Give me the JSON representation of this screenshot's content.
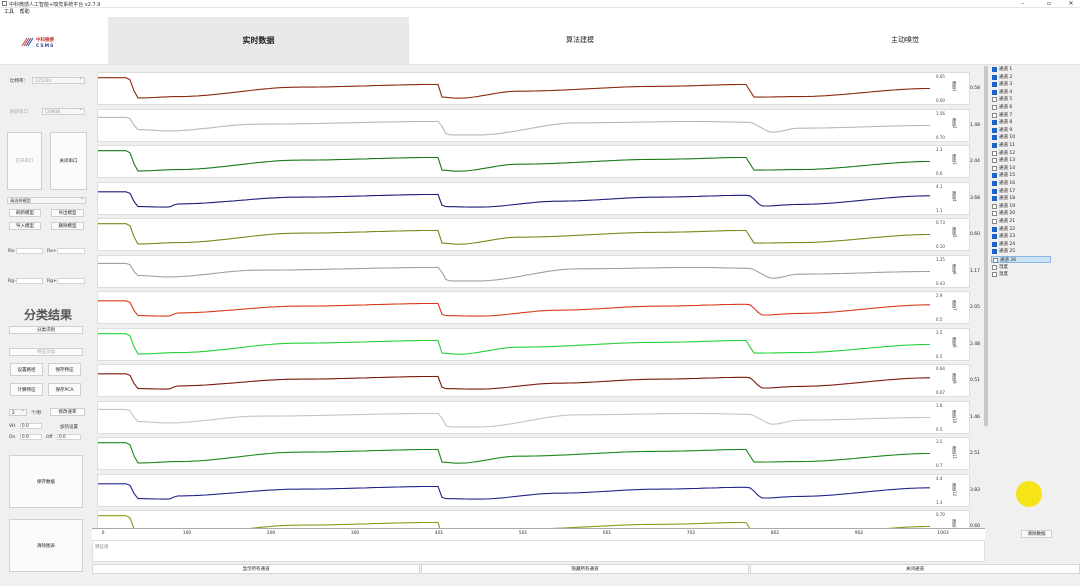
{
  "window": {
    "title": "中科微感人工智能+嗅觉系统平台 v2.7.9",
    "minimize": "–",
    "maximize": "▫",
    "close": "✕"
  },
  "menu": [
    "工具",
    "帮助"
  ],
  "logo": {
    "line1": "中科微感",
    "line2": "CSMS"
  },
  "tabs": [
    "实时数据",
    "算法建模",
    "主动嗅觉"
  ],
  "left": {
    "baud_label": "比特率：",
    "baud_value": "115200",
    "port_label": "刷新串口",
    "port_value": "COM38",
    "open_port": "打开串口",
    "close_port": "关闭串口",
    "model_select": "请选择模型",
    "model_buttons": [
      "刷新模型",
      "导出模型",
      "导入模型",
      "删除模型"
    ],
    "ra_minus": "Ra-",
    "ra_plus": "Ra+",
    "rg_minus": "Rg-",
    "rg_plus": "Rg+",
    "result_title": "分类结果",
    "classify_button": "分类识别",
    "feature_add": "特征添加",
    "feature_buttons": [
      "设置路径",
      "保存特征",
      "计算特征",
      "保存PCA"
    ],
    "per_count_value": "2",
    "per_count_label": "个/秒",
    "modify_rate": "修改速率",
    "vh_label": "VH",
    "vh_value": "0.0",
    "pulse_setting": "加热设置",
    "on_label": "On",
    "on_value": "0.0",
    "off_label": "Off",
    "off_value": "0.0",
    "save_data": "保存数据",
    "clear_chart": "清除图表"
  },
  "channels": [
    {
      "name": "通道1",
      "max": "0.65",
      "min": "0.00",
      "current": "0.58",
      "color": "#8b2a0e",
      "shape": 0
    },
    {
      "name": "通道2",
      "max": "1.56",
      "min": "0.70",
      "current": "1.48",
      "color": "#b8b8b8",
      "shape": 1
    },
    {
      "name": "通道3",
      "max": "3.3",
      "min": "0.6",
      "current": "2.44",
      "color": "#1a7a1a",
      "shape": 0
    },
    {
      "name": "通道4",
      "max": "4.1",
      "min": "1.1",
      "current": "3.68",
      "color": "#1c1c7a",
      "shape": 2
    },
    {
      "name": "通道5",
      "max": "0.73",
      "min": "0.10",
      "current": "0.60",
      "color": "#7a8a1a",
      "shape": 0
    },
    {
      "name": "通道6",
      "max": "1.25",
      "min": "0.43",
      "current": "1.17",
      "color": "#a0a0a0",
      "shape": 1
    },
    {
      "name": "通道7",
      "max": "2.9",
      "min": "0.5",
      "current": "2.05",
      "color": "#d93a1a",
      "shape": 2
    },
    {
      "name": "通道8",
      "max": "3.5",
      "min": "0.5",
      "current": "2.48",
      "color": "#26d13a",
      "shape": 0
    },
    {
      "name": "通道9",
      "max": "0.64",
      "min": "0.07",
      "current": "0.51",
      "color": "#7a1a0a",
      "shape": 2
    },
    {
      "name": "通道10",
      "max": "1.6",
      "min": "0.5",
      "current": "1.46",
      "color": "#c4c4c4",
      "shape": 1
    },
    {
      "name": "通道11",
      "max": "3.5",
      "min": "0.7",
      "current": "2.51",
      "color": "#1a8a1a",
      "shape": 0
    },
    {
      "name": "通道12",
      "max": "4.4",
      "min": "1.3",
      "current": "3.83",
      "color": "#23238f",
      "shape": 2
    },
    {
      "name": "通道13",
      "max": "0.70",
      "min": "",
      "current": "0.60",
      "color": "#8a9a1a",
      "shape": 0
    }
  ],
  "x_axis": [
    "0",
    "100",
    "200",
    "300",
    "401",
    "501",
    "601",
    "702",
    "802",
    "902",
    "1003"
  ],
  "status_text": "特征值",
  "bottom_buttons": [
    "显示所有通道",
    "隐藏所有通道",
    "关闭通道"
  ],
  "clear_data": "清除数据",
  "channel_list": [
    {
      "label": "通道 1",
      "checked": true
    },
    {
      "label": "通道 2",
      "checked": true
    },
    {
      "label": "通道 3",
      "checked": true
    },
    {
      "label": "通道 4",
      "checked": true
    },
    {
      "label": "通道 5",
      "checked": false
    },
    {
      "label": "通道 6",
      "checked": false
    },
    {
      "label": "通道 7",
      "checked": false
    },
    {
      "label": "通道 8",
      "checked": true
    },
    {
      "label": "通道 9",
      "checked": true
    },
    {
      "label": "通道 10",
      "checked": true
    },
    {
      "label": "通道 11",
      "checked": true
    },
    {
      "label": "通道 12",
      "checked": false
    },
    {
      "label": "通道 13",
      "checked": false
    },
    {
      "label": "通道 14",
      "checked": false
    },
    {
      "label": "通道 15",
      "checked": true
    },
    {
      "label": "通道 16",
      "checked": true
    },
    {
      "label": "通道 17",
      "checked": true
    },
    {
      "label": "通道 18",
      "checked": true
    },
    {
      "label": "通道 19",
      "checked": false
    },
    {
      "label": "通道 20",
      "checked": false
    },
    {
      "label": "通道 21",
      "checked": false
    },
    {
      "label": "通道 22",
      "checked": true
    },
    {
      "label": "通道 23",
      "checked": true
    },
    {
      "label": "通道 24",
      "checked": true
    },
    {
      "label": "通道 25",
      "checked": true
    },
    {
      "label": "通道 26",
      "checked": false,
      "highlight": true
    },
    {
      "label": "湿度",
      "checked": false
    },
    {
      "label": "温度",
      "checked": false
    }
  ]
}
